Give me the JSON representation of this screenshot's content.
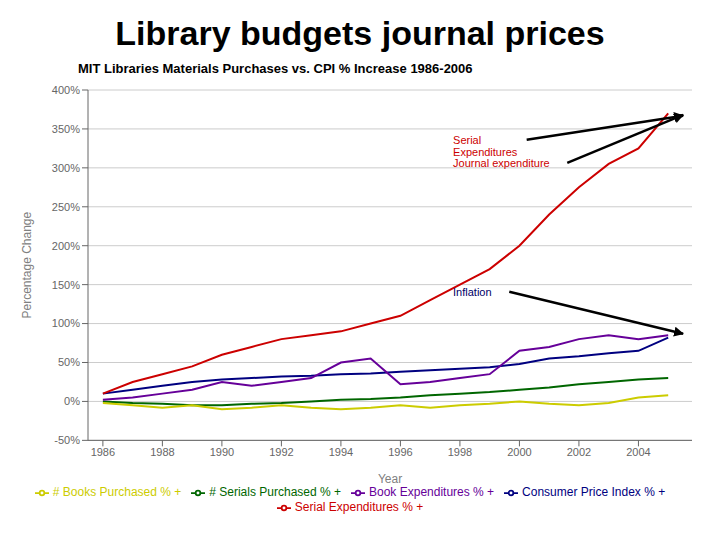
{
  "chart_data": {
    "type": "line",
    "title": "Library budgets journal prices",
    "subtitle": "MIT Libraries Materials Purchases  vs. CPI % Increase 1986-2006",
    "xlabel": "Year",
    "ylabel": "Percentage Change",
    "x": [
      1986,
      1987,
      1988,
      1989,
      1990,
      1991,
      1992,
      1993,
      1994,
      1995,
      1996,
      1997,
      1998,
      1999,
      2000,
      2001,
      2002,
      2003,
      2004,
      2005
    ],
    "series": [
      {
        "name": "Consumer Price Index % +",
        "color": "#000080",
        "values": [
          10,
          15,
          20,
          25,
          28,
          30,
          32,
          33,
          35,
          36,
          38,
          40,
          42,
          44,
          48,
          55,
          58,
          62,
          65,
          82
        ]
      },
      {
        "name": "Serial Expenditures % +",
        "color": "#CC0000",
        "values": [
          10,
          25,
          35,
          45,
          60,
          70,
          80,
          85,
          90,
          100,
          110,
          130,
          150,
          170,
          200,
          240,
          275,
          305,
          325,
          370
        ]
      },
      {
        "name": "# Serials Purchased % +",
        "color": "#006600",
        "values": [
          0,
          -2,
          -3,
          -5,
          -5,
          -3,
          -2,
          0,
          2,
          3,
          5,
          8,
          10,
          12,
          15,
          18,
          22,
          25,
          28,
          30
        ]
      },
      {
        "name": "# Books Purchased % +",
        "color": "#CCCC00",
        "values": [
          -2,
          -5,
          -8,
          -5,
          -10,
          -8,
          -5,
          -8,
          -10,
          -8,
          -5,
          -8,
          -5,
          -3,
          0,
          -3,
          -5,
          -2,
          5,
          8
        ]
      },
      {
        "name": "Book Expenditures % +",
        "color": "#660099",
        "values": [
          2,
          5,
          10,
          15,
          25,
          20,
          25,
          30,
          50,
          55,
          22,
          25,
          30,
          35,
          65,
          70,
          80,
          85,
          80,
          85
        ]
      }
    ],
    "xlim": [
      1985.5,
      2005.8
    ],
    "xticks": [
      1986,
      1988,
      1990,
      1992,
      1994,
      1996,
      1998,
      2000,
      2002,
      2004
    ],
    "ylim": [
      -50,
      400
    ],
    "yticks": [
      {
        "value": -50,
        "label": "-50%"
      },
      {
        "value": 0,
        "label": "0%"
      },
      {
        "value": 50,
        "label": "50%"
      },
      {
        "value": 100,
        "label": "100%"
      },
      {
        "value": 150,
        "label": "150%"
      },
      {
        "value": 200,
        "label": "200%"
      },
      {
        "value": 250,
        "label": "250%"
      },
      {
        "value": 300,
        "label": "300%"
      },
      {
        "value": 350,
        "label": "350%"
      },
      {
        "value": 400,
        "label": "400%"
      }
    ],
    "grid": true,
    "legend": "bottom",
    "annotations": [
      {
        "text": "Serial\nExpenditures",
        "x": 2005.5,
        "y": 367,
        "color": "#CC0000"
      },
      {
        "text": "Journal expenditure",
        "x": 2005.5,
        "y": 368,
        "color": "#CC0000"
      },
      {
        "text": "Inflation",
        "x": 2005.5,
        "y": 87,
        "color": "#000066"
      }
    ]
  }
}
